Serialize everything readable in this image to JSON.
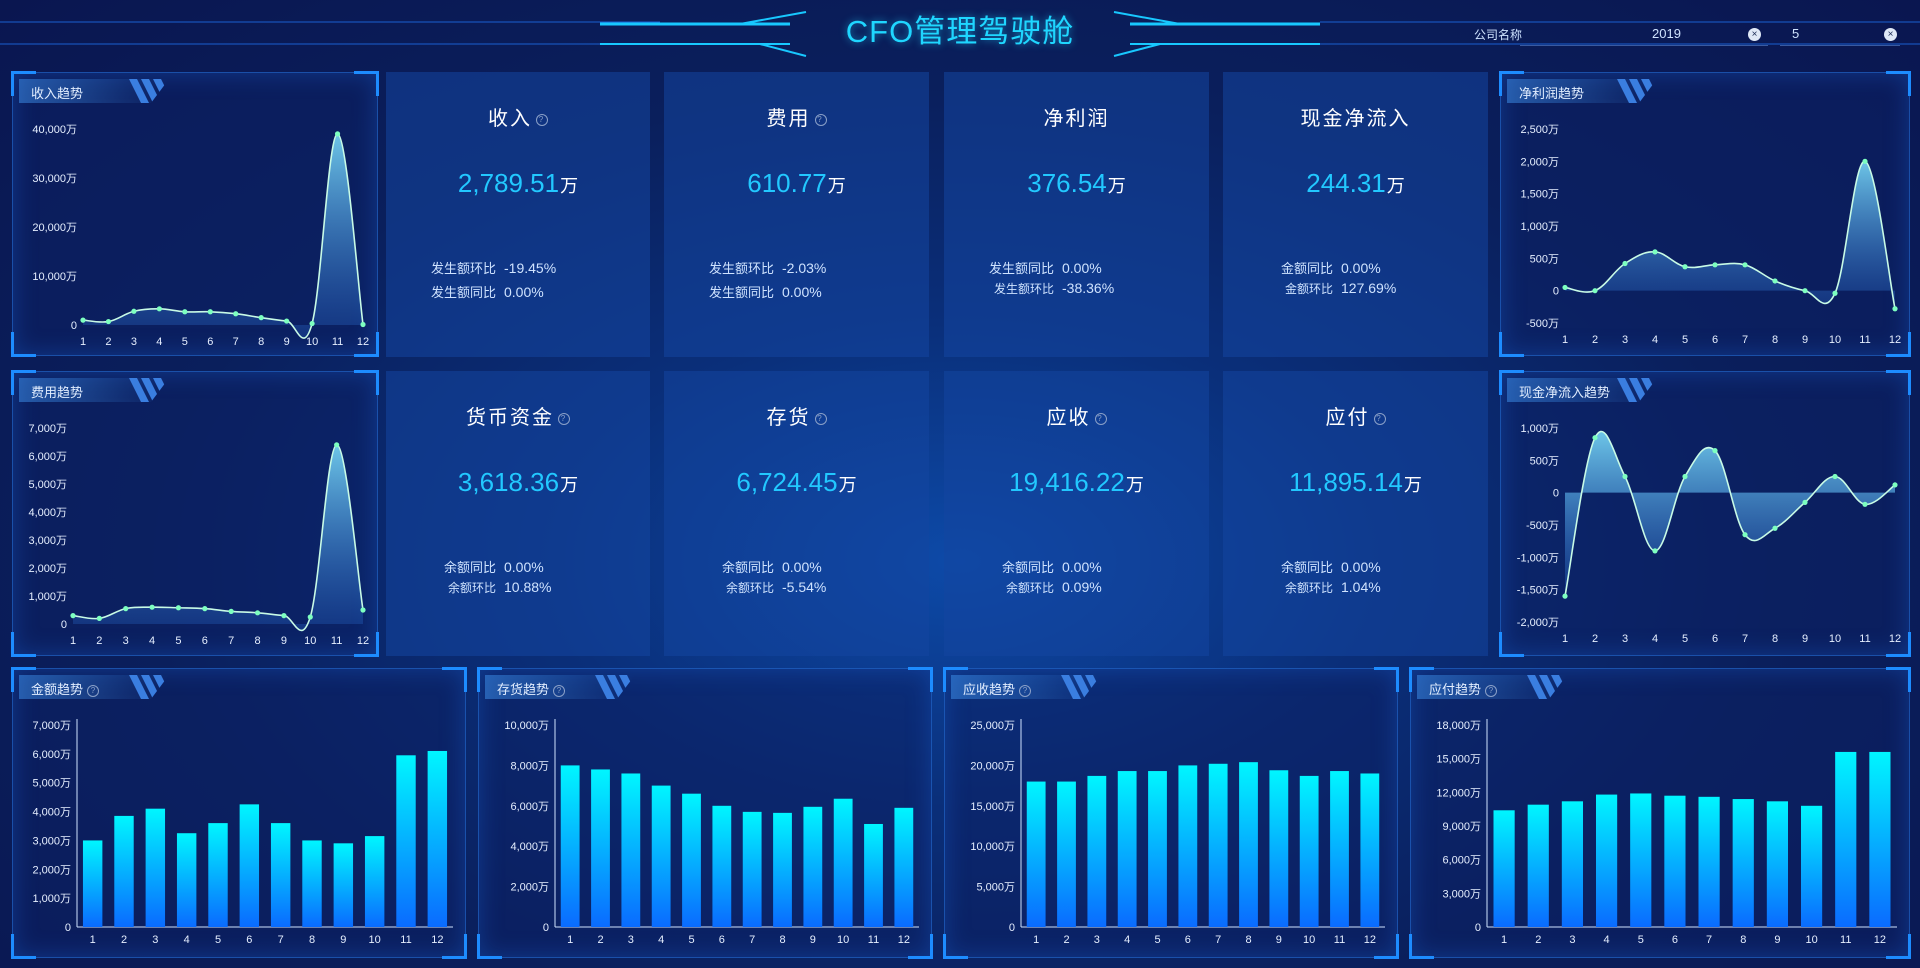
{
  "header": {
    "title": "CFO管理驾驶舱",
    "company_label": "公司名称",
    "year_value": "2019",
    "month_value": "5",
    "clear_glyph": "×"
  },
  "colors": {
    "accent": "#1fd6ff",
    "panel_border": "#1d8cff",
    "line": "#a8f0d0",
    "bar_top": "#00f2ff",
    "bar_bottom": "#0a6bff"
  },
  "panels": {
    "income_trend": "收入趋势",
    "profit_trend": "净利润趋势",
    "expense_trend": "费用趋势",
    "cashflow_trend": "现金净流入趋势",
    "amount_trend": "金额趋势",
    "inventory_trend": "存货趋势",
    "receivable_trend": "应收趋势",
    "payable_trend": "应付趋势"
  },
  "kpis": [
    {
      "title": "收入",
      "value": "2,789.51",
      "unit": "万",
      "rows": [
        {
          "label": "发生额环比",
          "value": "-19.45%"
        },
        {
          "label": "发生额同比",
          "value": "0.00%"
        }
      ]
    },
    {
      "title": "费用",
      "value": "610.77",
      "unit": "万",
      "rows": [
        {
          "label": "发生额环比",
          "value": "-2.03%"
        },
        {
          "label": "发生额同比",
          "value": "0.00%"
        }
      ]
    },
    {
      "title": "净利润",
      "value": "376.54",
      "unit": "万",
      "rows": [
        {
          "label": "发生额同比",
          "value": "0.00%"
        },
        {
          "label": "发生额环比",
          "value": "-38.36%"
        }
      ]
    },
    {
      "title": "现金净流入",
      "value": "244.31",
      "unit": "万",
      "rows": [
        {
          "label": "金额同比",
          "value": "0.00%"
        },
        {
          "label": "金额环比",
          "value": "127.69%"
        }
      ]
    },
    {
      "title": "货币资金",
      "value": "3,618.36",
      "unit": "万",
      "rows": [
        {
          "label": "余额同比",
          "value": "0.00%"
        },
        {
          "label": "余额环比",
          "value": "10.88%"
        }
      ]
    },
    {
      "title": "存货",
      "value": "6,724.45",
      "unit": "万",
      "rows": [
        {
          "label": "余额同比",
          "value": "0.00%"
        },
        {
          "label": "余额环比",
          "value": "-5.54%"
        }
      ]
    },
    {
      "title": "应收",
      "value": "19,416.22",
      "unit": "万",
      "rows": [
        {
          "label": "余额同比",
          "value": "0.00%"
        },
        {
          "label": "余额环比",
          "value": "0.09%"
        }
      ]
    },
    {
      "title": "应付",
      "value": "11,895.14",
      "unit": "万",
      "rows": [
        {
          "label": "余额同比",
          "value": "0.00%"
        },
        {
          "label": "余额环比",
          "value": "1.04%"
        }
      ]
    }
  ],
  "chart_data": [
    {
      "id": "income",
      "type": "area",
      "title": "收入趋势",
      "categories": [
        "1",
        "2",
        "3",
        "4",
        "5",
        "6",
        "7",
        "8",
        "9",
        "10",
        "11",
        "12"
      ],
      "values": [
        1000,
        700,
        2800,
        3300,
        2700,
        2700,
        2300,
        1500,
        800,
        300,
        39000,
        100
      ],
      "ylim": [
        0,
        40000
      ],
      "yticks": [
        0,
        10000,
        20000,
        30000,
        40000
      ],
      "ytick_labels": [
        "0",
        "10,000万",
        "20,000万",
        "30,000万",
        "40,000万"
      ]
    },
    {
      "id": "profit",
      "type": "area",
      "title": "净利润趋势",
      "categories": [
        "1",
        "2",
        "3",
        "4",
        "5",
        "6",
        "7",
        "8",
        "9",
        "10",
        "11",
        "12"
      ],
      "values": [
        50,
        0,
        420,
        600,
        370,
        400,
        400,
        150,
        0,
        -40,
        2000,
        -280
      ],
      "ylim": [
        -500,
        2500
      ],
      "yticks": [
        -500,
        0,
        500,
        1000,
        1500,
        2000,
        2500
      ],
      "ytick_labels": [
        "-500万",
        "0",
        "500万",
        "1,000万",
        "1,500万",
        "2,000万",
        "2,500万"
      ]
    },
    {
      "id": "expense",
      "type": "area",
      "title": "费用趋势",
      "categories": [
        "1",
        "2",
        "3",
        "4",
        "5",
        "6",
        "7",
        "8",
        "9",
        "10",
        "11",
        "12"
      ],
      "values": [
        300,
        200,
        550,
        600,
        580,
        550,
        450,
        400,
        300,
        250,
        6400,
        500
      ],
      "ylim": [
        0,
        7000
      ],
      "yticks": [
        0,
        1000,
        2000,
        3000,
        4000,
        5000,
        6000,
        7000
      ],
      "ytick_labels": [
        "0",
        "1,000万",
        "2,000万",
        "3,000万",
        "4,000万",
        "5,000万",
        "6,000万",
        "7,000万"
      ]
    },
    {
      "id": "cashflow",
      "type": "area",
      "title": "现金净流入趋势",
      "categories": [
        "1",
        "2",
        "3",
        "4",
        "5",
        "6",
        "7",
        "8",
        "9",
        "10",
        "11",
        "12"
      ],
      "values": [
        -1600,
        850,
        250,
        -900,
        250,
        650,
        -650,
        -550,
        -150,
        250,
        -180,
        120
      ],
      "ylim": [
        -2000,
        1000
      ],
      "yticks": [
        -2000,
        -1500,
        -1000,
        -500,
        0,
        500,
        1000
      ],
      "ytick_labels": [
        "-2,000万",
        "-1,500万",
        "-1,000万",
        "-500万",
        "0",
        "500万",
        "1,000万"
      ]
    },
    {
      "id": "amount",
      "type": "bar",
      "title": "金额趋势",
      "categories": [
        "1",
        "2",
        "3",
        "4",
        "5",
        "6",
        "7",
        "8",
        "9",
        "10",
        "11",
        "12"
      ],
      "values": [
        3000,
        3850,
        4100,
        3250,
        3600,
        4250,
        3600,
        3000,
        2900,
        3150,
        5950,
        6100
      ],
      "ylim": [
        0,
        7000
      ],
      "yticks": [
        0,
        1000,
        2000,
        3000,
        4000,
        5000,
        6000,
        7000
      ],
      "ytick_labels": [
        "0",
        "1,000万",
        "2,000万",
        "3,000万",
        "4,000万",
        "5,000万",
        "6,000万",
        "7,000万"
      ]
    },
    {
      "id": "inventory",
      "type": "bar",
      "title": "存货趋势",
      "categories": [
        "1",
        "2",
        "3",
        "4",
        "5",
        "6",
        "7",
        "8",
        "9",
        "10",
        "11",
        "12"
      ],
      "values": [
        8000,
        7800,
        7600,
        7000,
        6600,
        6000,
        5700,
        5650,
        5950,
        6350,
        5100,
        5900
      ],
      "ylim": [
        0,
        10000
      ],
      "yticks": [
        0,
        2000,
        4000,
        6000,
        8000,
        10000
      ],
      "ytick_labels": [
        "0",
        "2,000万",
        "4,000万",
        "6,000万",
        "8,000万",
        "10,000万"
      ]
    },
    {
      "id": "receivable",
      "type": "bar",
      "title": "应收趋势",
      "categories": [
        "1",
        "2",
        "3",
        "4",
        "5",
        "6",
        "7",
        "8",
        "9",
        "10",
        "11",
        "12"
      ],
      "values": [
        18000,
        18000,
        18700,
        19300,
        19300,
        20000,
        20200,
        20400,
        19400,
        18700,
        19300,
        19000
      ],
      "ylim": [
        0,
        25000
      ],
      "yticks": [
        0,
        5000,
        10000,
        15000,
        20000,
        25000
      ],
      "ytick_labels": [
        "0",
        "5,000万",
        "10,000万",
        "15,000万",
        "20,000万",
        "25,000万"
      ]
    },
    {
      "id": "payable",
      "type": "bar",
      "title": "应付趋势",
      "categories": [
        "1",
        "2",
        "3",
        "4",
        "5",
        "6",
        "7",
        "8",
        "9",
        "10",
        "11",
        "12"
      ],
      "values": [
        10400,
        10900,
        11200,
        11800,
        11900,
        11700,
        11600,
        11400,
        11200,
        10800,
        15600,
        15600
      ],
      "ylim": [
        0,
        18000
      ],
      "yticks": [
        0,
        3000,
        6000,
        9000,
        12000,
        15000,
        18000
      ],
      "ytick_labels": [
        "0",
        "3,000万",
        "6,000万",
        "9,000万",
        "12,000万",
        "15,000万",
        "18,000万"
      ]
    }
  ]
}
